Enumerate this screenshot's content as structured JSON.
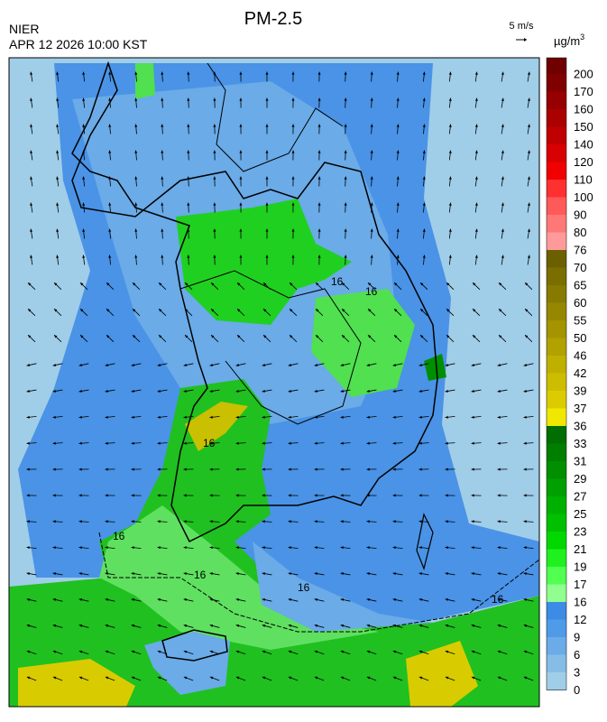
{
  "header": {
    "title": "PM-2.5",
    "agency": "NIER",
    "timestamp": "APR 12 2026 10:00 KST"
  },
  "wind_scale": {
    "label": "5 m/s"
  },
  "colorbar": {
    "unit": "µg/m",
    "unit_exponent": "3",
    "levels": [
      200,
      170,
      160,
      150,
      140,
      120,
      110,
      100,
      90,
      80,
      76,
      70,
      65,
      60,
      55,
      50,
      46,
      42,
      39,
      37,
      36,
      33,
      31,
      29,
      27,
      25,
      23,
      21,
      19,
      17,
      16,
      12,
      9,
      6,
      3,
      0
    ],
    "colors": [
      "#700000",
      "#800000",
      "#960000",
      "#aa0000",
      "#c00000",
      "#d80000",
      "#f00000",
      "#ff3030",
      "#ff5a5a",
      "#ff7878",
      "#ff9a9a",
      "#6b6000",
      "#7a6e00",
      "#877a00",
      "#958700",
      "#a39400",
      "#b1a200",
      "#bfb000",
      "#cdbd00",
      "#dbcb00",
      "#f0e800",
      "#006e00",
      "#007e00",
      "#008f00",
      "#00a000",
      "#00b000",
      "#00c000",
      "#00d800",
      "#20f020",
      "#50ff50",
      "#90ff90",
      "#3c8ce6",
      "#4f9be8",
      "#6aabe8",
      "#85bde6",
      "#a0cde8"
    ]
  },
  "contour_labels": [
    "16",
    "16",
    "16",
    "16",
    "16",
    "16",
    "16"
  ]
}
